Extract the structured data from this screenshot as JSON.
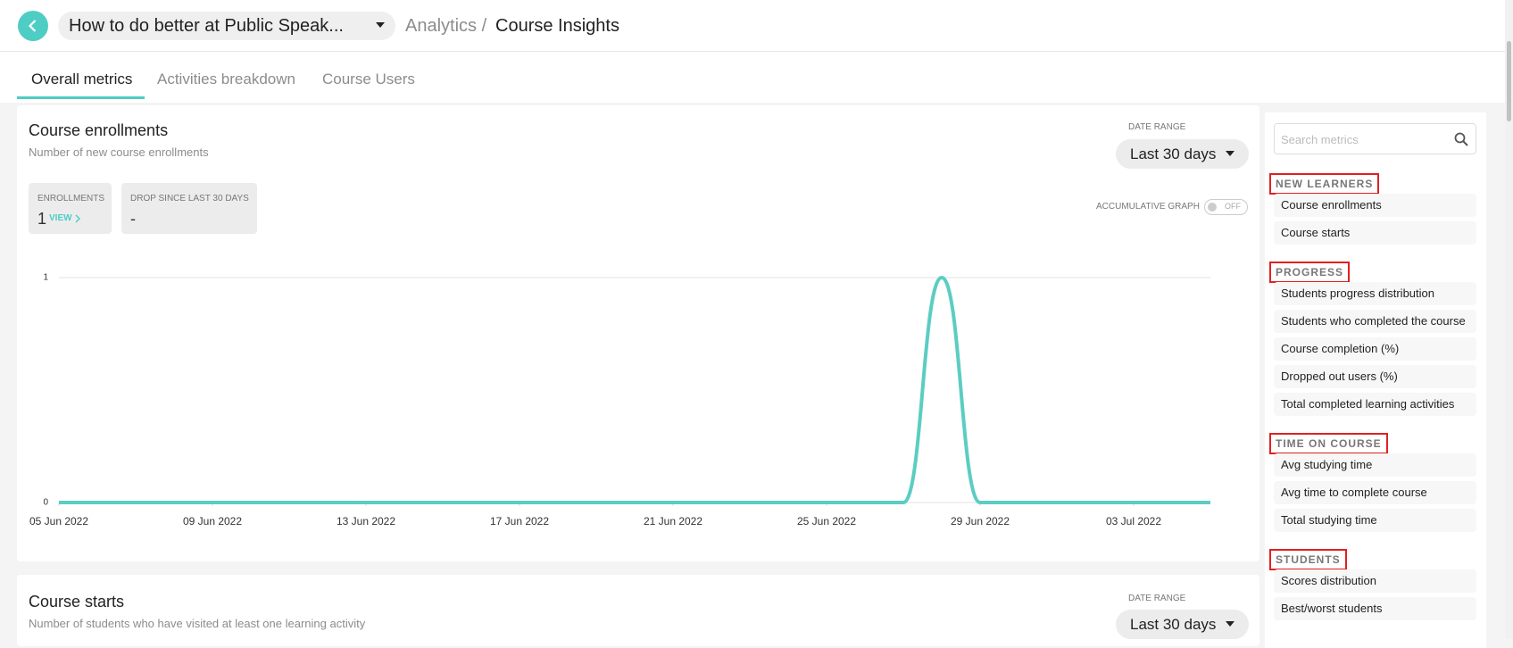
{
  "header": {
    "course_title": "How to do better at Public Speak...",
    "breadcrumb_parent": "Analytics /",
    "breadcrumb_current": "Course Insights"
  },
  "tabs": [
    "Overall metrics",
    "Activities breakdown",
    "Course Users"
  ],
  "cards": [
    {
      "title": "Course enrollments",
      "subtitle": "Number of new course enrollments",
      "date_range_label": "DATE RANGE",
      "date_range_value": "Last 30 days",
      "stats": [
        {
          "label": "ENROLLMENTS",
          "value": 1,
          "link": "VIEW"
        },
        {
          "label": "DROP SINCE LAST 30 DAYS",
          "value": "-"
        }
      ],
      "toggle_label": "ACCUMULATIVE GRAPH",
      "toggle_state": "OFF"
    },
    {
      "title": "Course starts",
      "subtitle": "Number of students who have visited at least one learning activity",
      "date_range_label": "DATE RANGE",
      "date_range_value": "Last 30 days"
    }
  ],
  "chart_data": {
    "type": "line",
    "color": "#5bcdc3",
    "grid": true,
    "categories": [
      "05 Jun 2022",
      null,
      null,
      null,
      "09 Jun 2022",
      null,
      null,
      null,
      "13 Jun 2022",
      null,
      null,
      null,
      "17 Jun 2022",
      null,
      null,
      null,
      "21 Jun 2022",
      null,
      null,
      null,
      "25 Jun 2022",
      null,
      null,
      null,
      "29 Jun 2022",
      null,
      null,
      null,
      "03 Jul 2022",
      null,
      null
    ],
    "values": [
      0,
      0,
      0,
      0,
      0,
      0,
      0,
      0,
      0,
      0,
      0,
      0,
      0,
      0,
      0,
      0,
      0,
      0,
      0,
      0,
      0,
      0,
      0,
      1,
      0,
      0,
      0,
      0,
      0,
      0,
      0
    ],
    "ylim": [
      0,
      1
    ],
    "yticks": [
      0,
      1
    ]
  },
  "sidebar": {
    "search_placeholder": "Search metrics",
    "groups": [
      {
        "title": "NEW LEARNERS",
        "items": [
          "Course enrollments",
          "Course starts"
        ]
      },
      {
        "title": "PROGRESS",
        "items": [
          "Students progress distribution",
          "Students who completed the course",
          "Course completion (%)",
          "Dropped out users (%)",
          "Total completed learning activities"
        ]
      },
      {
        "title": "TIME ON COURSE",
        "items": [
          "Avg studying time",
          "Avg time to complete course",
          "Total studying time"
        ]
      },
      {
        "title": "STUDENTS",
        "items": [
          "Scores distribution",
          "Best/worst students"
        ]
      }
    ]
  }
}
